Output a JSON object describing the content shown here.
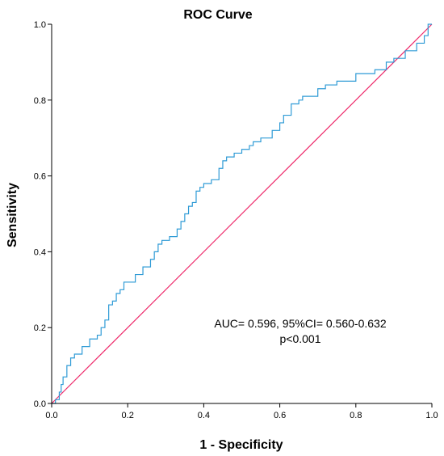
{
  "chart_data": {
    "type": "line",
    "title": "ROC Curve",
    "xlabel": "1 - Specificity",
    "ylabel": "Sensitivity",
    "xlim": [
      0,
      1
    ],
    "ylim": [
      0,
      1
    ],
    "xticks": [
      "0.0",
      "0.2",
      "0.4",
      "0.6",
      "0.8",
      "1.0"
    ],
    "yticks": [
      "0.0",
      "0.2",
      "0.4",
      "0.6",
      "0.8",
      "1.0"
    ],
    "grid": false,
    "annotations": [
      "AUC= 0.596, 95%CI= 0.560-0.632",
      "p<0.001"
    ],
    "colors": {
      "roc": "#2f9bd6",
      "reference": "#ee2a6b"
    },
    "series": [
      {
        "x": [
          0,
          0.01,
          0.02,
          0.025,
          0.03,
          0.04,
          0.05,
          0.06,
          0.08,
          0.1,
          0.11,
          0.12,
          0.13,
          0.14,
          0.15,
          0.16,
          0.17,
          0.18,
          0.19,
          0.2,
          0.22,
          0.24,
          0.26,
          0.27,
          0.28,
          0.29,
          0.3,
          0.31,
          0.33,
          0.34,
          0.35,
          0.36,
          0.37,
          0.38,
          0.39,
          0.4,
          0.42,
          0.44,
          0.45,
          0.46,
          0.48,
          0.5,
          0.52,
          0.53,
          0.55,
          0.58,
          0.6,
          0.61,
          0.63,
          0.65,
          0.66,
          0.7,
          0.72,
          0.75,
          0.8,
          0.85,
          0.88,
          0.9,
          0.93,
          0.96,
          0.98,
          0.99,
          1.0
        ],
        "y": [
          0,
          0.01,
          0.03,
          0.05,
          0.07,
          0.1,
          0.12,
          0.13,
          0.15,
          0.17,
          0.17,
          0.18,
          0.2,
          0.22,
          0.26,
          0.27,
          0.29,
          0.3,
          0.32,
          0.32,
          0.34,
          0.36,
          0.38,
          0.4,
          0.42,
          0.43,
          0.43,
          0.44,
          0.46,
          0.48,
          0.5,
          0.52,
          0.53,
          0.56,
          0.57,
          0.58,
          0.59,
          0.62,
          0.64,
          0.65,
          0.66,
          0.67,
          0.68,
          0.69,
          0.7,
          0.72,
          0.74,
          0.76,
          0.79,
          0.8,
          0.81,
          0.83,
          0.84,
          0.85,
          0.87,
          0.88,
          0.9,
          0.91,
          0.93,
          0.95,
          0.97,
          1.0,
          1.0
        ]
      },
      {
        "x": [
          0,
          1
        ],
        "y": [
          0,
          1
        ]
      }
    ]
  }
}
